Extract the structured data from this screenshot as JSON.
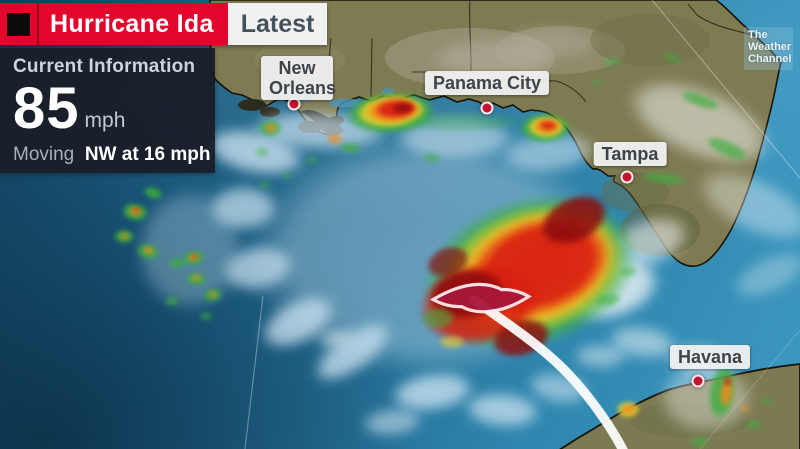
{
  "header": {
    "title": "Hurricane Ida",
    "tab": "Latest",
    "bar_color": "#e2062c",
    "tab_text_color": "#44525c"
  },
  "info_panel": {
    "title": "Current Information",
    "wind_speed": "85",
    "wind_unit": "mph",
    "moving_label": "Moving",
    "moving_value": "NW at 16 mph"
  },
  "watermark": {
    "line1": "The",
    "line2": "Weather",
    "line3": "Channel"
  },
  "map": {
    "cities": [
      {
        "label": "New Orleans"
      },
      {
        "label": "Panama City"
      },
      {
        "label": "Tampa"
      },
      {
        "label": "Havana"
      }
    ],
    "storm": {
      "name": "Hurricane Ida",
      "symbol": "hurricane-icon"
    }
  },
  "colors": {
    "brand_red": "#e2062c",
    "city_dot_red": "#c41430",
    "radar_green": "#3fae3f",
    "radar_yellow": "#e8d22f",
    "radar_orange": "#f28a1c",
    "radar_red": "#d81f12",
    "radar_dark_red": "#8c0b0e",
    "ocean_deep": "#123f5c",
    "ocean_light": "#3e9ac2",
    "land_olive": "#7e7b53"
  }
}
